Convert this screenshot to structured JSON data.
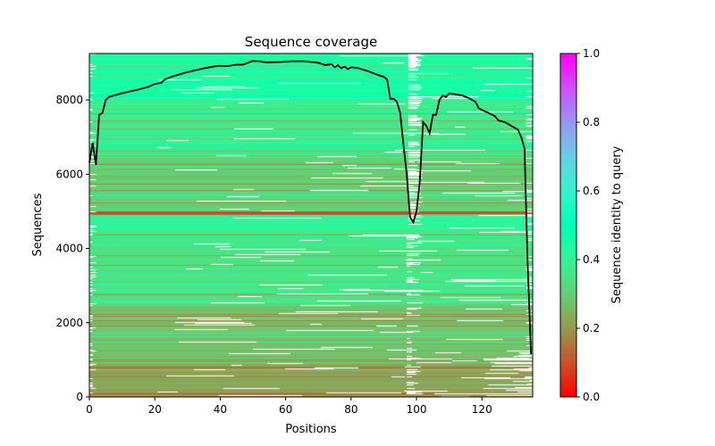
{
  "chart_data": {
    "type": "heatmap",
    "title": "Sequence coverage",
    "xlabel": "Positions",
    "ylabel": "Sequences",
    "xlim": [
      0,
      135.5
    ],
    "ylim": [
      0,
      9250
    ],
    "xticks": [
      0,
      20,
      40,
      60,
      80,
      100,
      120
    ],
    "xtick_labels": [
      "0",
      "20",
      "40",
      "60",
      "80",
      "100",
      "120"
    ],
    "yticks": [
      0,
      2000,
      4000,
      6000,
      8000
    ],
    "ytick_labels": [
      "0",
      "2000",
      "4000",
      "6000",
      "8000"
    ],
    "colorbar": {
      "label": "Sequence identity to query",
      "colormap": "rainbow_r",
      "range": [
        0,
        1
      ],
      "ticks": [
        0,
        0.2,
        0.4,
        0.6,
        0.8,
        1.0
      ],
      "tick_labels": [
        "0.0",
        "0.2",
        "0.4",
        "0.6",
        "0.8",
        "1.0"
      ]
    },
    "coverage_line": {
      "color": "#000000",
      "x": [
        0,
        1,
        2,
        3,
        4,
        5,
        6,
        8,
        10,
        15,
        18,
        20,
        22,
        23,
        25,
        28,
        30,
        35,
        38,
        40,
        42,
        45,
        47,
        50,
        52,
        54,
        58,
        62,
        66,
        70,
        72,
        74,
        75,
        76,
        77,
        78,
        79,
        80,
        82,
        85,
        88,
        90,
        91,
        92,
        93,
        94,
        95,
        96,
        97,
        98,
        99,
        100,
        101,
        102,
        103,
        104,
        105,
        106,
        107,
        108,
        109,
        110,
        112,
        114,
        116,
        118,
        119,
        120,
        122,
        124,
        125,
        127,
        129,
        131,
        132,
        133,
        134,
        135
      ],
      "y": [
        6300,
        6850,
        6250,
        7600,
        7650,
        8000,
        8080,
        8130,
        8180,
        8280,
        8350,
        8430,
        8460,
        8550,
        8620,
        8700,
        8750,
        8850,
        8900,
        8920,
        8910,
        8950,
        8950,
        9050,
        9040,
        9010,
        9020,
        9040,
        9040,
        9000,
        8940,
        8960,
        8880,
        8940,
        8850,
        8900,
        8830,
        8880,
        8860,
        8780,
        8680,
        8620,
        8550,
        8030,
        8030,
        7950,
        7650,
        6800,
        6000,
        4850,
        4700,
        5000,
        5800,
        7400,
        7300,
        7100,
        7600,
        7600,
        8000,
        8120,
        8080,
        8180,
        8150,
        8120,
        8050,
        7950,
        7780,
        7730,
        7650,
        7560,
        7450,
        7400,
        7300,
        7200,
        7000,
        6700,
        3500,
        1150
      ]
    },
    "identity_profile": {
      "seq_bands": [
        [
          0,
          1000,
          0.22
        ],
        [
          1000,
          2500,
          0.28
        ],
        [
          2500,
          4500,
          0.35
        ],
        [
          4500,
          4900,
          0.42
        ],
        [
          4900,
          5000,
          0.12
        ],
        [
          5000,
          6500,
          0.3
        ],
        [
          6500,
          8000,
          0.37
        ],
        [
          8000,
          9250,
          0.45
        ]
      ]
    }
  }
}
